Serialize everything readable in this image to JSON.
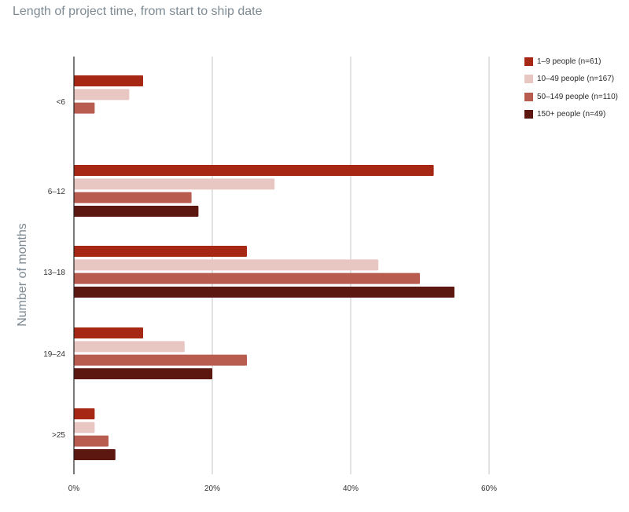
{
  "title": "Length of project time, from start to ship date",
  "chart_data": {
    "type": "bar",
    "orientation": "horizontal",
    "title": "Length of project time, from start to ship date",
    "ylabel": "Number of months",
    "xlabel": "",
    "categories": [
      "<6",
      "6–12",
      "13–18",
      "19–24",
      ">25"
    ],
    "xlim": [
      0,
      60
    ],
    "xticks": [
      0,
      20,
      40,
      60
    ],
    "xtick_labels": [
      "0%",
      "20%",
      "40%",
      "60%"
    ],
    "grid": true,
    "legend_position": "top-right",
    "series": [
      {
        "name": "1–9 people (n=61)",
        "color": "#a52714",
        "values": [
          10,
          52,
          25,
          10,
          3
        ]
      },
      {
        "name": "10–49 people (n=167)",
        "color": "#e8c6c2",
        "values": [
          8,
          29,
          44,
          16,
          3
        ]
      },
      {
        "name": "50–149 people (n=110)",
        "color": "#b85c50",
        "values": [
          3,
          17,
          50,
          25,
          5
        ]
      },
      {
        "name": "150+ people (n=49)",
        "color": "#5c1710",
        "values": [
          0,
          18,
          55,
          20,
          6
        ]
      }
    ]
  }
}
